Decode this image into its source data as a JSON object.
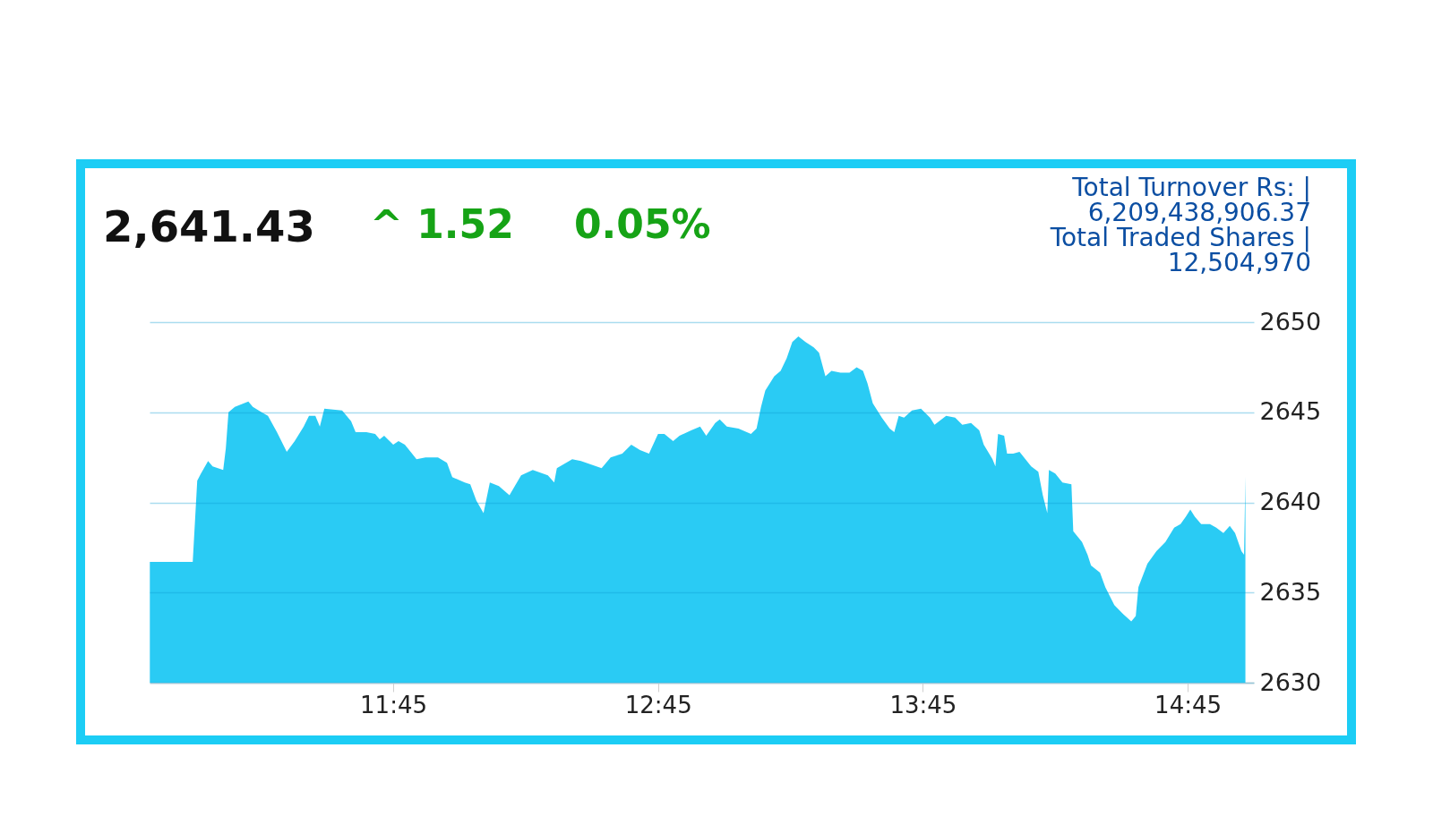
{
  "chart_data": {
    "type": "area",
    "title": "2,641.43",
    "annotations": [
      "^ 1.52",
      "0.05%",
      "Total Turnover Rs: |",
      "6,209,438,906.37",
      "Total Traded Shares |",
      "12,504,970"
    ],
    "x": [
      10.831,
      10.993,
      11.01,
      11.024,
      11.051,
      11.068,
      11.108,
      11.118,
      11.128,
      11.152,
      11.203,
      11.22,
      11.253,
      11.277,
      11.311,
      11.348,
      11.378,
      11.412,
      11.432,
      11.456,
      11.473,
      11.49,
      11.557,
      11.591,
      11.608,
      11.649,
      11.682,
      11.699,
      11.716,
      11.75,
      11.77,
      11.794,
      11.838,
      11.872,
      11.919,
      11.953,
      11.973,
      12.02,
      12.041,
      12.064,
      12.091,
      12.115,
      12.149,
      12.189,
      12.233,
      12.277,
      12.334,
      12.358,
      12.368,
      12.426,
      12.459,
      12.537,
      12.571,
      12.615,
      12.649,
      12.682,
      12.716,
      12.75,
      12.774,
      12.807,
      12.831,
      12.875,
      12.909,
      12.932,
      12.966,
      12.983,
      13.01,
      13.054,
      13.101,
      13.122,
      13.139,
      13.155,
      13.189,
      13.213,
      13.236,
      13.257,
      13.28,
      13.307,
      13.338,
      13.358,
      13.382,
      13.405,
      13.439,
      13.473,
      13.5,
      13.524,
      13.541,
      13.561,
      13.595,
      13.625,
      13.642,
      13.659,
      13.679,
      13.709,
      13.743,
      13.777,
      13.794,
      13.838,
      13.872,
      13.899,
      13.932,
      13.963,
      13.98,
      14.013,
      14.024,
      14.034,
      14.057,
      14.068,
      14.091,
      14.115,
      14.132,
      14.159,
      14.186,
      14.203,
      14.22,
      14.226,
      14.25,
      14.277,
      14.311,
      14.318,
      14.351,
      14.372,
      14.385,
      14.419,
      14.439,
      14.473,
      14.507,
      14.537,
      14.554,
      14.564,
      14.598,
      14.632,
      14.666,
      14.699,
      14.723,
      14.743,
      14.76,
      14.777,
      14.801,
      14.834,
      14.858,
      14.885,
      14.909,
      14.929,
      14.953,
      14.963,
      14.968
    ],
    "series": [
      {
        "color": "#1fc8f3",
        "values": [
          2636.7,
          2636.7,
          2641.2,
          2641.6,
          2642.3,
          2642.0,
          2641.8,
          2643.0,
          2645.0,
          2645.3,
          2645.6,
          2645.3,
          2645.0,
          2644.8,
          2643.9,
          2642.8,
          2643.4,
          2644.2,
          2644.8,
          2644.8,
          2644.2,
          2645.2,
          2645.1,
          2644.5,
          2643.9,
          2643.9,
          2643.8,
          2643.5,
          2643.7,
          2643.2,
          2643.4,
          2643.2,
          2642.4,
          2642.5,
          2642.5,
          2642.2,
          2641.4,
          2641.1,
          2641.0,
          2640.1,
          2639.4,
          2641.1,
          2640.9,
          2640.4,
          2641.5,
          2641.8,
          2641.5,
          2641.1,
          2641.9,
          2642.4,
          2642.3,
          2641.9,
          2642.5,
          2642.7,
          2643.2,
          2642.9,
          2642.7,
          2643.8,
          2643.8,
          2643.4,
          2643.7,
          2644.0,
          2644.2,
          2643.7,
          2644.4,
          2644.6,
          2644.2,
          2644.1,
          2643.8,
          2644.1,
          2645.3,
          2646.2,
          2647.0,
          2647.3,
          2648.0,
          2648.9,
          2649.2,
          2648.9,
          2648.6,
          2648.3,
          2647.0,
          2647.3,
          2647.2,
          2647.2,
          2647.5,
          2647.3,
          2646.6,
          2645.5,
          2644.7,
          2644.1,
          2643.9,
          2644.8,
          2644.7,
          2645.1,
          2645.2,
          2644.7,
          2644.3,
          2644.8,
          2644.7,
          2644.3,
          2644.4,
          2644.0,
          2643.2,
          2642.4,
          2642.0,
          2643.8,
          2643.7,
          2642.7,
          2642.7,
          2642.8,
          2642.5,
          2642.0,
          2641.7,
          2640.4,
          2639.4,
          2641.8,
          2641.6,
          2641.1,
          2641.0,
          2638.4,
          2637.8,
          2637.1,
          2636.5,
          2636.1,
          2635.3,
          2634.3,
          2633.8,
          2633.4,
          2633.7,
          2635.3,
          2636.6,
          2637.3,
          2637.8,
          2638.6,
          2638.8,
          2639.2,
          2639.6,
          2639.2,
          2638.8,
          2638.8,
          2638.6,
          2638.3,
          2638.7,
          2638.3,
          2637.3,
          2637.1,
          2641.43
        ]
      }
    ],
    "xlim": [
      10.83,
      15.0
    ],
    "ylim": [
      2630,
      2650
    ],
    "xticks": [
      {
        "value": 11.75,
        "label": "11:45"
      },
      {
        "value": 12.75,
        "label": "12:45"
      },
      {
        "value": 13.75,
        "label": "13:45"
      },
      {
        "value": 14.75,
        "label": "14:45"
      }
    ],
    "yticks": [
      2630,
      2635,
      2640,
      2645,
      2650
    ],
    "grid": "y"
  }
}
